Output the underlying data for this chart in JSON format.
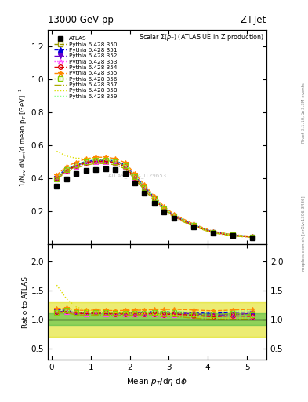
{
  "title_top": "13000 GeV pp",
  "title_right": "Z+Jet",
  "plot_title": "Scalar $\\Sigma(p_T)$ (ATLAS UE in Z production)",
  "ylabel_main": "1/N$_{ev}$ dN$_{ev}$/d mean p$_T$ [GeV]$^{-1}$",
  "ylabel_ratio": "Ratio to ATLAS",
  "xlabel": "Mean $p_T$/d$\\eta$ d$\\phi$",
  "right_label_top": "Rivet 3.1.10, ≥ 3.3M events",
  "right_label_bot": "mcplots.cern.ch [arXiv:1306.3436]",
  "watermark": "ATLAS_2014_I1296531",
  "ylim_main": [
    0.0,
    1.3
  ],
  "ylim_ratio": [
    0.3,
    2.3
  ],
  "xlim": [
    -0.1,
    5.5
  ],
  "atlas_x": [
    0.13,
    0.38,
    0.63,
    0.88,
    1.13,
    1.38,
    1.63,
    1.88,
    2.13,
    2.38,
    2.63,
    2.88,
    3.13,
    3.63,
    4.13,
    4.63,
    5.13
  ],
  "atlas_y": [
    0.355,
    0.395,
    0.43,
    0.45,
    0.455,
    0.458,
    0.452,
    0.43,
    0.37,
    0.31,
    0.25,
    0.195,
    0.155,
    0.105,
    0.068,
    0.05,
    0.04
  ],
  "mc_350_y": [
    0.4,
    0.445,
    0.472,
    0.492,
    0.5,
    0.5,
    0.493,
    0.47,
    0.405,
    0.34,
    0.275,
    0.212,
    0.17,
    0.113,
    0.072,
    0.055,
    0.043
  ],
  "mc_351_y": [
    0.415,
    0.455,
    0.482,
    0.503,
    0.512,
    0.513,
    0.506,
    0.482,
    0.416,
    0.349,
    0.283,
    0.22,
    0.175,
    0.117,
    0.075,
    0.056,
    0.045
  ],
  "mc_352_y": [
    0.4,
    0.452,
    0.478,
    0.498,
    0.507,
    0.507,
    0.5,
    0.477,
    0.411,
    0.344,
    0.279,
    0.216,
    0.172,
    0.115,
    0.073,
    0.054,
    0.044
  ],
  "mc_353_y": [
    0.395,
    0.448,
    0.472,
    0.491,
    0.5,
    0.5,
    0.492,
    0.469,
    0.403,
    0.337,
    0.272,
    0.21,
    0.168,
    0.112,
    0.071,
    0.053,
    0.042
  ],
  "mc_354_y": [
    0.4,
    0.45,
    0.476,
    0.494,
    0.503,
    0.503,
    0.495,
    0.471,
    0.405,
    0.339,
    0.274,
    0.211,
    0.169,
    0.112,
    0.071,
    0.053,
    0.042
  ],
  "mc_355_y": [
    0.42,
    0.472,
    0.498,
    0.519,
    0.528,
    0.528,
    0.52,
    0.496,
    0.428,
    0.36,
    0.292,
    0.228,
    0.182,
    0.122,
    0.078,
    0.058,
    0.047
  ],
  "mc_356_y": [
    0.395,
    0.455,
    0.48,
    0.5,
    0.509,
    0.509,
    0.501,
    0.477,
    0.411,
    0.344,
    0.279,
    0.216,
    0.173,
    0.115,
    0.073,
    0.055,
    0.043
  ],
  "mc_357_y": [
    0.393,
    0.44,
    0.463,
    0.481,
    0.49,
    0.49,
    0.482,
    0.459,
    0.395,
    0.329,
    0.265,
    0.204,
    0.163,
    0.107,
    0.068,
    0.05,
    0.04
  ],
  "mc_358_y": [
    0.565,
    0.535,
    0.522,
    0.522,
    0.517,
    0.513,
    0.503,
    0.476,
    0.408,
    0.339,
    0.272,
    0.21,
    0.167,
    0.11,
    0.069,
    0.051,
    0.041
  ],
  "mc_359_y": [
    0.405,
    0.458,
    0.485,
    0.506,
    0.515,
    0.516,
    0.508,
    0.484,
    0.418,
    0.351,
    0.285,
    0.221,
    0.177,
    0.118,
    0.076,
    0.057,
    0.046
  ],
  "colors": {
    "350": "#999900",
    "351": "#0000dd",
    "352": "#6600cc",
    "353": "#ff44ff",
    "354": "#dd0000",
    "355": "#ff8800",
    "356": "#88cc00",
    "357": "#aaaa00",
    "358": "#dddd00",
    "359": "#88ff88"
  },
  "linestyles": {
    "350": "--",
    "351": "--",
    "352": "-.",
    "353": ":",
    "354": "--",
    "355": "--",
    "356": ":",
    "357": "-.",
    "358": ":",
    "359": ":"
  },
  "markers": {
    "350": "s",
    "351": "^",
    "352": "v",
    "353": "^",
    "354": "o",
    "355": "*",
    "356": "s",
    "357": "none",
    "358": "none",
    "359": "none"
  },
  "marker_filled": {
    "350": false,
    "351": true,
    "352": true,
    "353": false,
    "354": false,
    "355": true,
    "356": false,
    "357": false,
    "358": false,
    "359": false
  }
}
